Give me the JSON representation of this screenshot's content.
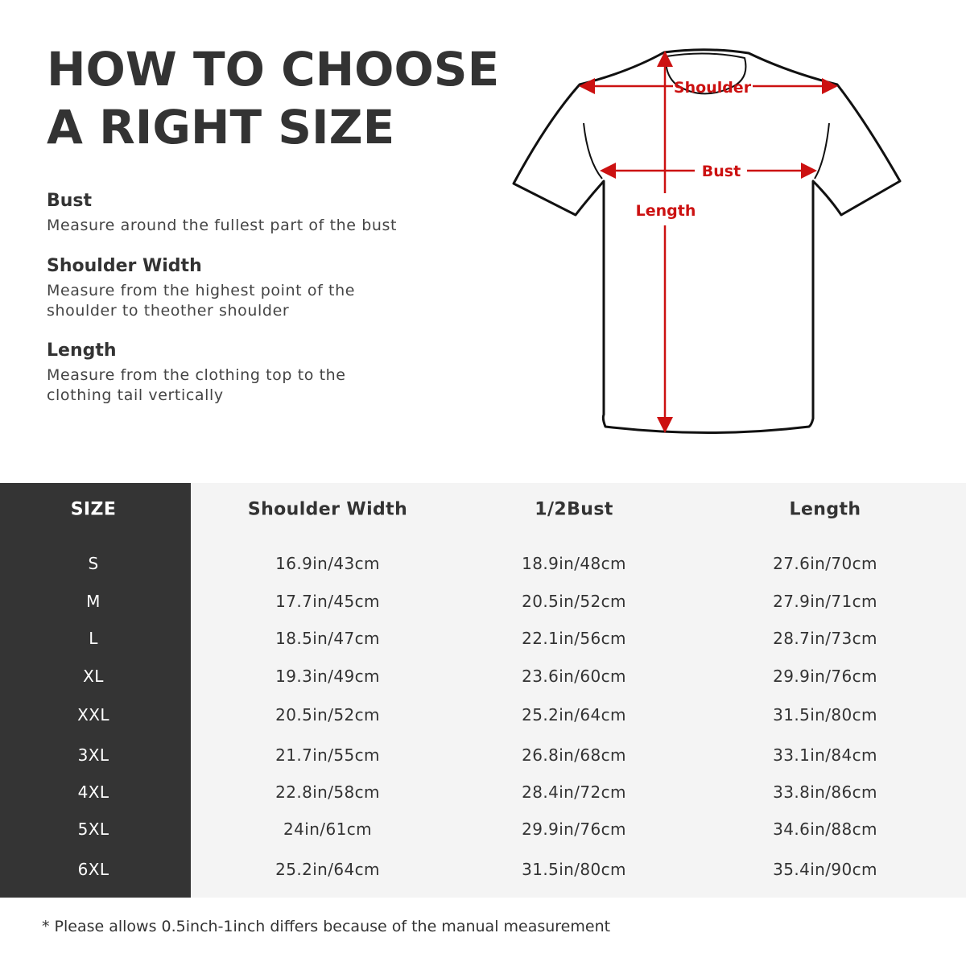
{
  "title_lines": [
    "HOW TO CHOOSE",
    "A RIGHT SIZE"
  ],
  "guide": [
    {
      "heading": "Bust",
      "lines": [
        "Measure around the fullest part of the bust"
      ]
    },
    {
      "heading": "Shoulder Width",
      "lines": [
        "Measure from the highest point of the",
        "shoulder to theother shoulder"
      ]
    },
    {
      "heading": "Length",
      "lines": [
        "Measure from the clothing top to the",
        "clothing tail vertically"
      ]
    }
  ],
  "diagram": {
    "shoulder": "Shoulder",
    "bust": "Bust",
    "length": "Length",
    "arrow_color": "#cc1111"
  },
  "table": {
    "headers": [
      "SIZE",
      "Shoulder Width",
      "1/2Bust",
      "Length"
    ],
    "rows": [
      [
        "S",
        "16.9in/43cm",
        "18.9in/48cm",
        "27.6in/70cm"
      ],
      [
        "M",
        "17.7in/45cm",
        "20.5in/52cm",
        "27.9in/71cm"
      ],
      [
        "L",
        "18.5in/47cm",
        "22.1in/56cm",
        "28.7in/73cm"
      ],
      [
        "XL",
        "19.3in/49cm",
        "23.6in/60cm",
        "29.9in/76cm"
      ],
      [
        "XXL",
        "20.5in/52cm",
        "25.2in/64cm",
        "31.5in/80cm"
      ],
      [
        "3XL",
        "21.7in/55cm",
        "26.8in/68cm",
        "33.1in/84cm"
      ],
      [
        "4XL",
        "22.8in/58cm",
        "28.4in/72cm",
        "33.8in/86cm"
      ],
      [
        "5XL",
        "24in/61cm",
        "29.9in/76cm",
        "34.6in/88cm"
      ],
      [
        "6XL",
        "25.2in/64cm",
        "31.5in/80cm",
        "35.4in/90cm"
      ]
    ]
  },
  "note": "* Please allows 0.5inch-1inch differs because of the  manual measurement"
}
